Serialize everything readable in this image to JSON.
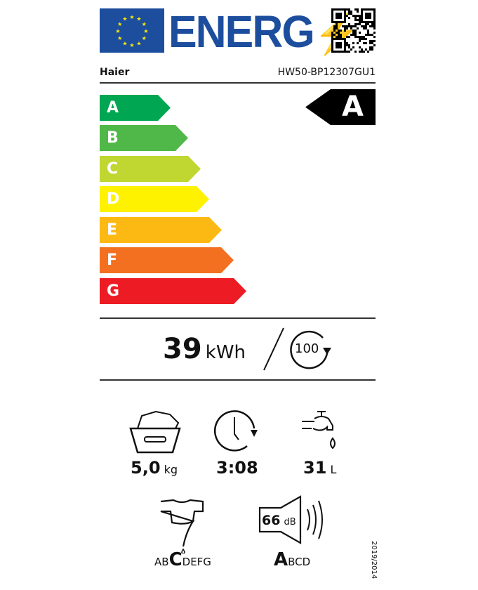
{
  "header": {
    "logo_text": "ENERG",
    "brand": "Haier",
    "model": "HW50-BP12307GU1"
  },
  "scale": [
    {
      "letter": "A",
      "color": "#00a651"
    },
    {
      "letter": "B",
      "color": "#50b848"
    },
    {
      "letter": "C",
      "color": "#bfd730"
    },
    {
      "letter": "D",
      "color": "#fff200"
    },
    {
      "letter": "E",
      "color": "#fdb913"
    },
    {
      "letter": "F",
      "color": "#f37021"
    },
    {
      "letter": "G",
      "color": "#ed1c24"
    }
  ],
  "rating": "A",
  "energy": {
    "value": "39",
    "unit": "kWh",
    "cycles": "100"
  },
  "capacity": {
    "value": "5,0",
    "unit": "kg"
  },
  "duration": {
    "value": "3:08"
  },
  "water": {
    "value": "31",
    "unit": "L"
  },
  "spin": {
    "pre": "AB",
    "selected": "C",
    "post": "DEFG"
  },
  "noise": {
    "value": "66",
    "unit": "dB",
    "selected": "A",
    "post": "BCD"
  },
  "regulation": "2019/2014"
}
